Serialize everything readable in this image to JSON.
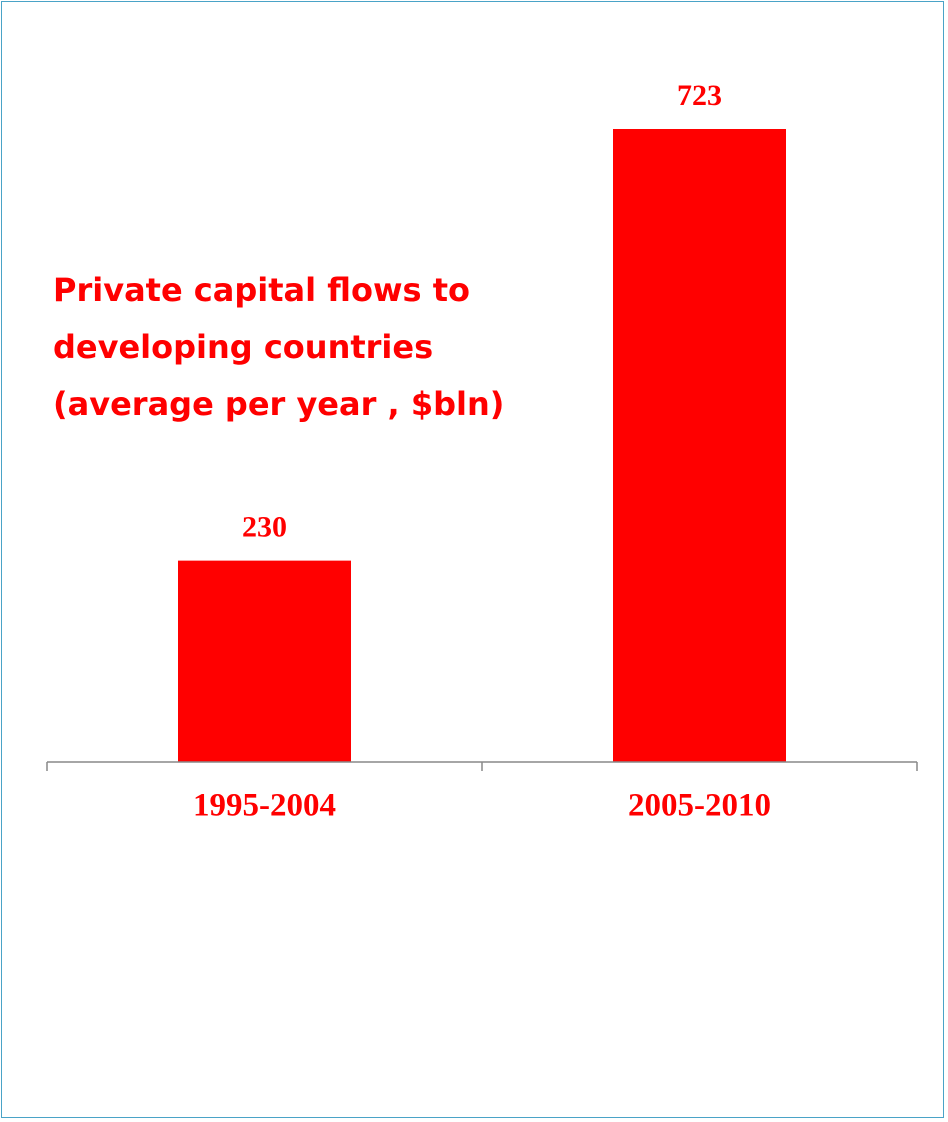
{
  "chart_data": {
    "type": "bar",
    "title": "Private capital flows to\ndeveloping countries\n(average per year , $bln)",
    "categories": [
      "1995-2004",
      "2005-2010"
    ],
    "values": [
      230,
      723
    ],
    "data_labels": [
      "230",
      "723"
    ],
    "ylim": [
      0,
      800
    ],
    "xlabel": "",
    "ylabel": "",
    "grid": false,
    "legend": "none",
    "colors": {
      "bar": "#ff0000",
      "text": "#ff0000",
      "axis": "#888888",
      "frame": "#4aa3c7"
    }
  }
}
